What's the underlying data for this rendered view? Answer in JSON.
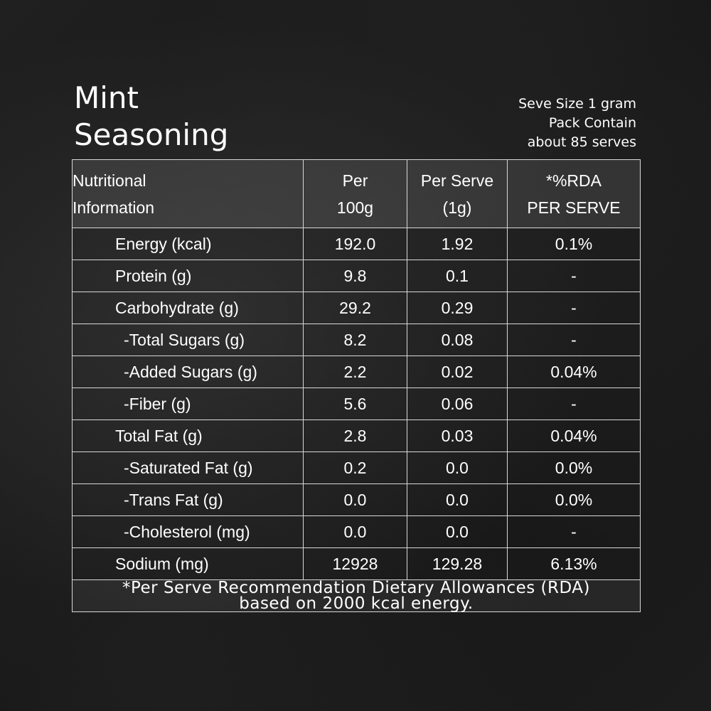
{
  "title": {
    "line1": "Mint",
    "line2": "Seasoning"
  },
  "serve_info": {
    "line1": "Seve Size 1 gram",
    "line2": "Pack Contain",
    "line3": "about 85  serves"
  },
  "table": {
    "headers": {
      "nutrient": [
        "Nutritional",
        "Information"
      ],
      "per100": [
        "Per",
        "100g"
      ],
      "perserve": [
        "Per Serve",
        "(1g)"
      ],
      "rda": [
        "*%RDA",
        "PER SERVE"
      ]
    },
    "rows": [
      {
        "name": "Energy (kcal)",
        "per100": "192.0",
        "perserve": "1.92",
        "rda": "0.1%"
      },
      {
        "name": "Protein (g)",
        "per100": "9.8",
        "perserve": "0.1",
        "rda": "-"
      },
      {
        "name": "Carbohydrate (g)",
        "per100": "29.2",
        "perserve": "0.29",
        "rda": "-"
      },
      {
        "name": "-Total Sugars (g)",
        "per100": "8.2",
        "perserve": "0.08",
        "rda": "-"
      },
      {
        "name": "-Added Sugars (g)",
        "per100": "2.2",
        "perserve": "0.02",
        "rda": "0.04%"
      },
      {
        "name": "-Fiber (g)",
        "per100": "5.6",
        "perserve": "0.06",
        "rda": "-"
      },
      {
        "name": "Total Fat (g)",
        "per100": "2.8",
        "perserve": "0.03",
        "rda": "0.04%"
      },
      {
        "name": "-Saturated Fat (g)",
        "per100": "0.2",
        "perserve": "0.0",
        "rda": "0.0%"
      },
      {
        "name": "-Trans Fat (g)",
        "per100": "0.0",
        "perserve": "0.0",
        "rda": "0.0%"
      },
      {
        "name": "-Cholesterol (mg)",
        "per100": "0.0",
        "perserve": "0.0",
        "rda": "-"
      },
      {
        "name": "Sodium (mg)",
        "per100": "12928",
        "perserve": "129.28",
        "rda": "6.13%"
      }
    ],
    "footnote": {
      "line1": "*Per Serve Recommendation Dietary Allowances (RDA)",
      "line2": "based on 2000 kcal energy."
    }
  },
  "colors": {
    "background": "#1a1a1a",
    "text": "#ffffff",
    "border": "#d8d8d8"
  }
}
